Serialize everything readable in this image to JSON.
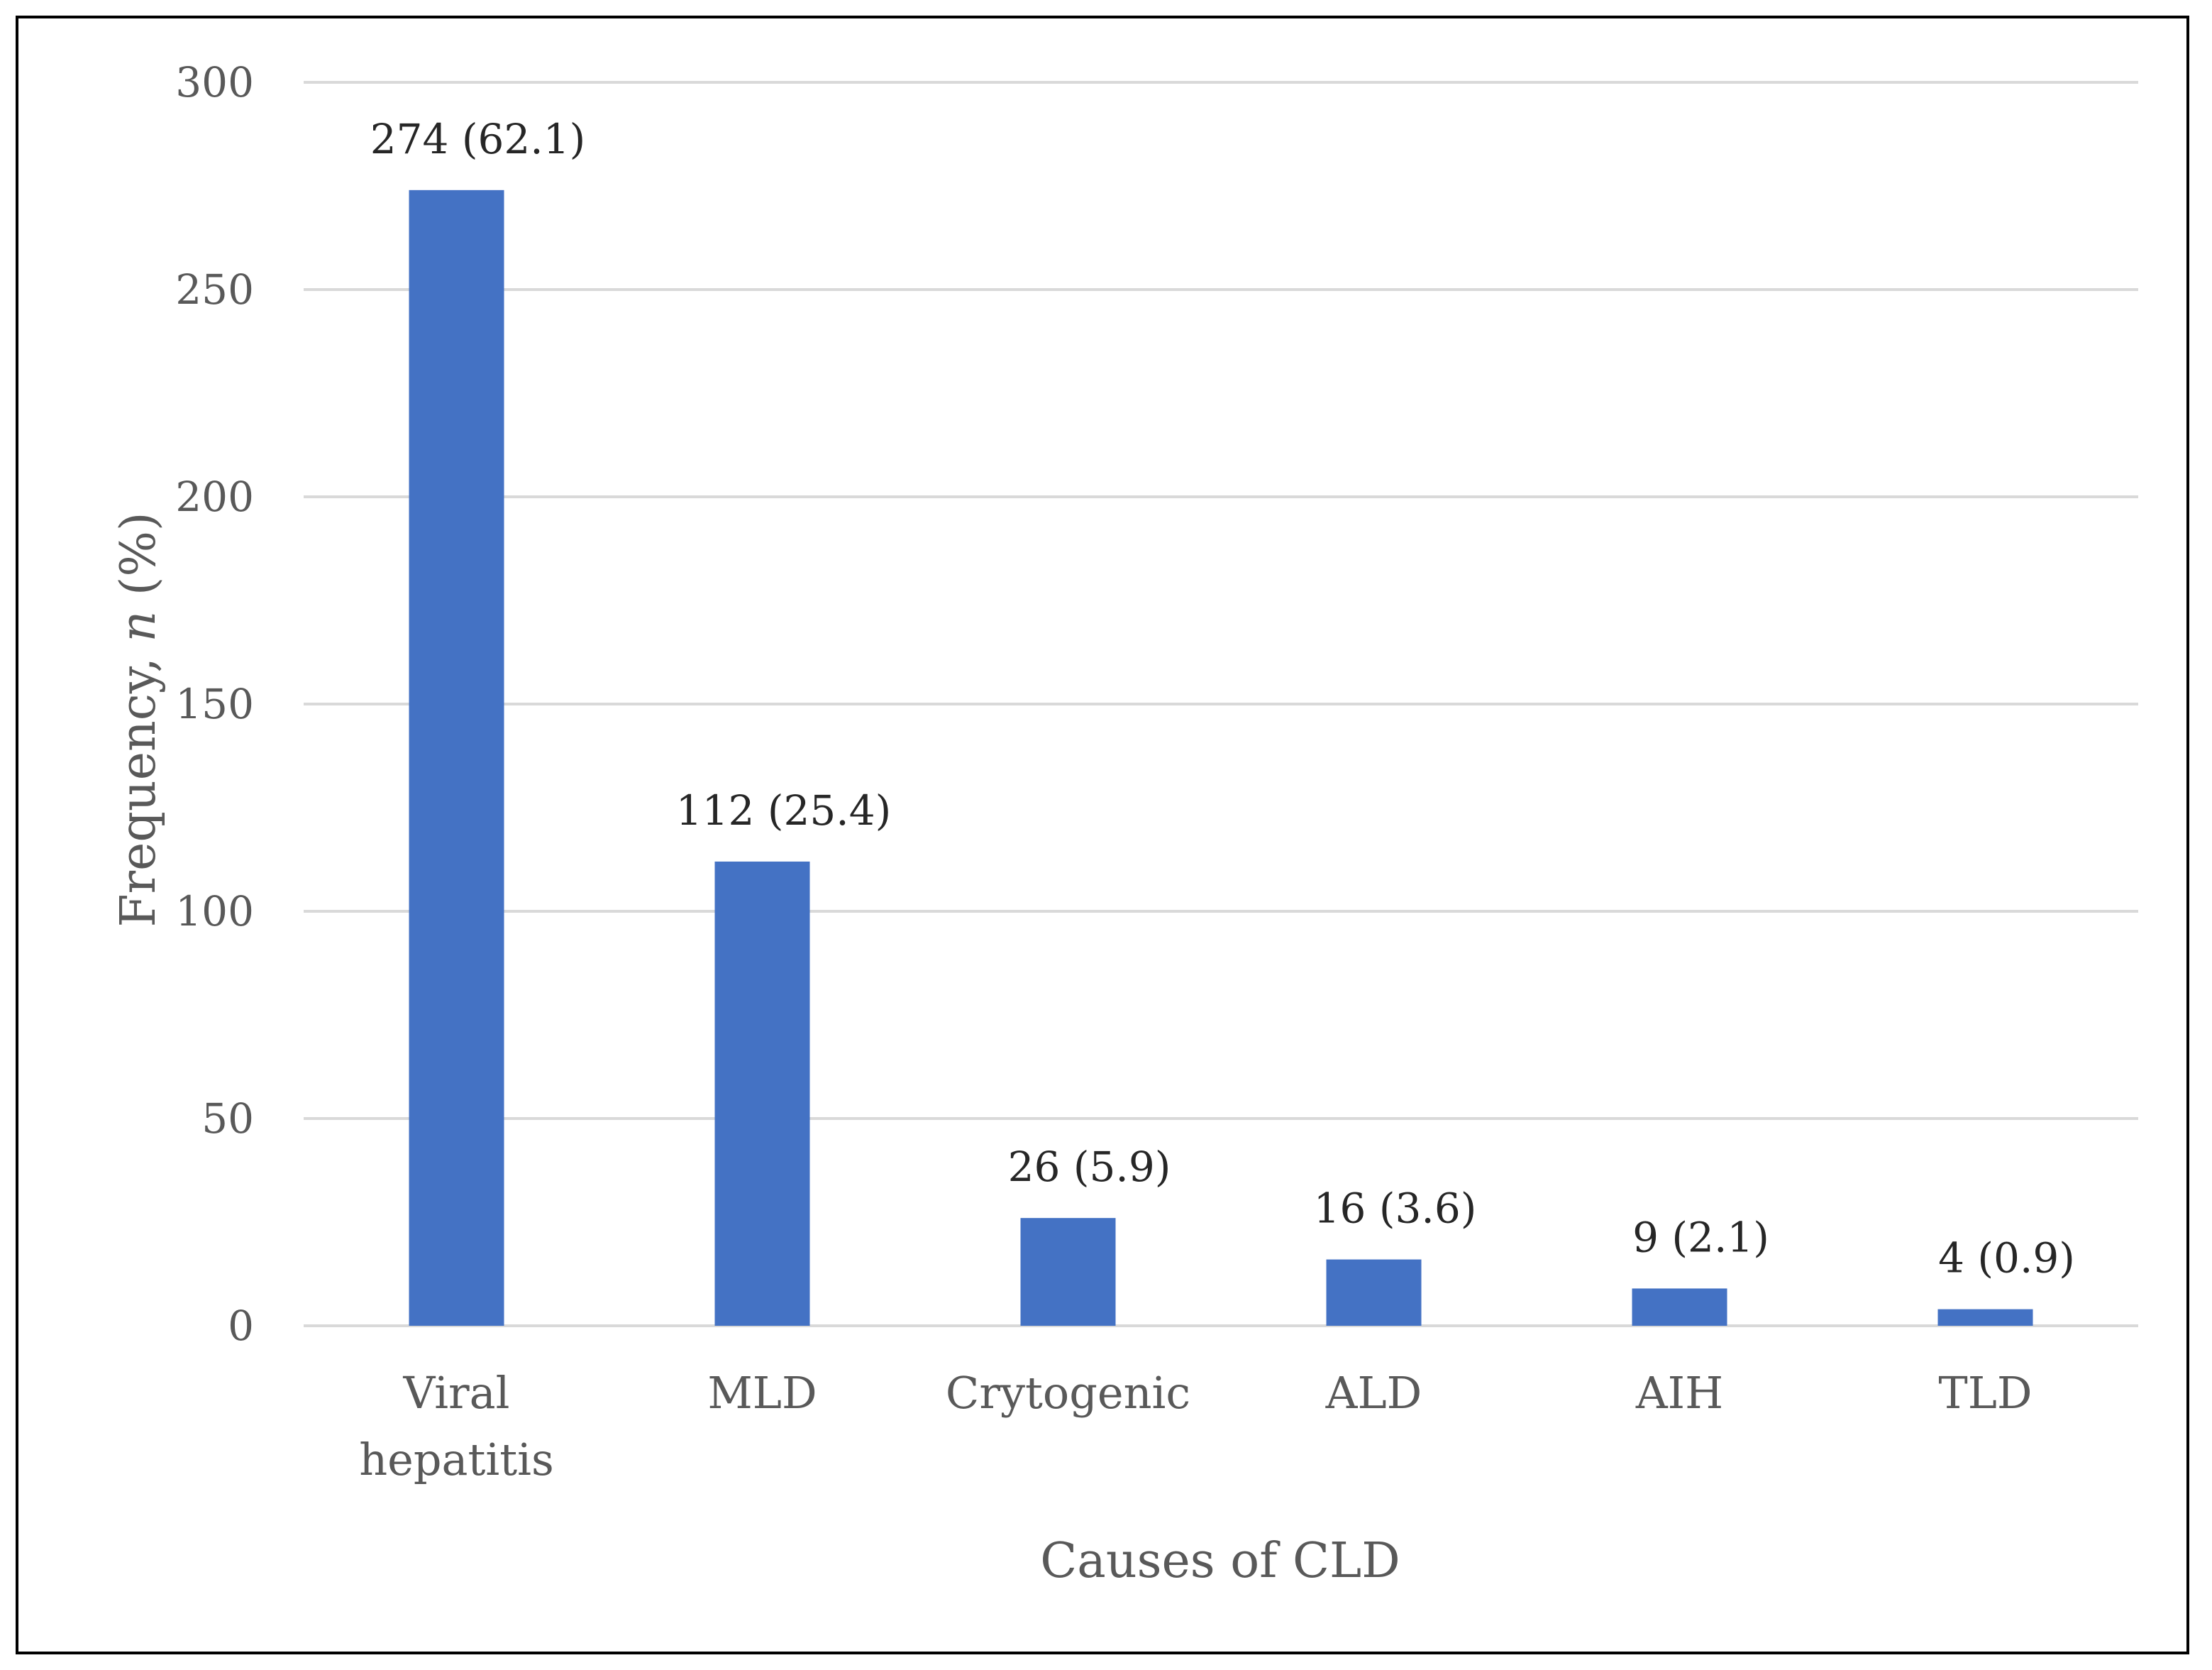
{
  "chart_data": {
    "type": "bar",
    "title": "",
    "xlabel": "Causes of CLD",
    "ylabel_prefix": "Frequency, ",
    "ylabel_italic": "n",
    "ylabel_suffix": " (%)",
    "ylim": [
      0,
      300
    ],
    "yticks": [
      0,
      50,
      100,
      150,
      200,
      250,
      300
    ],
    "grid": true,
    "categories": [
      [
        "Viral",
        "hepatitis"
      ],
      [
        "MLD"
      ],
      [
        "Crytogenic"
      ],
      [
        "ALD"
      ],
      [
        "AIH"
      ],
      [
        "TLD"
      ]
    ],
    "values": [
      274,
      112,
      26,
      16,
      9,
      4
    ],
    "data_labels": [
      "274 (62.1)",
      "112 (25.4)",
      "26  (5.9)",
      "16 (3.6)",
      "9 (2.1)",
      "4 (0.9)"
    ],
    "bar_color": "#4472c4"
  }
}
